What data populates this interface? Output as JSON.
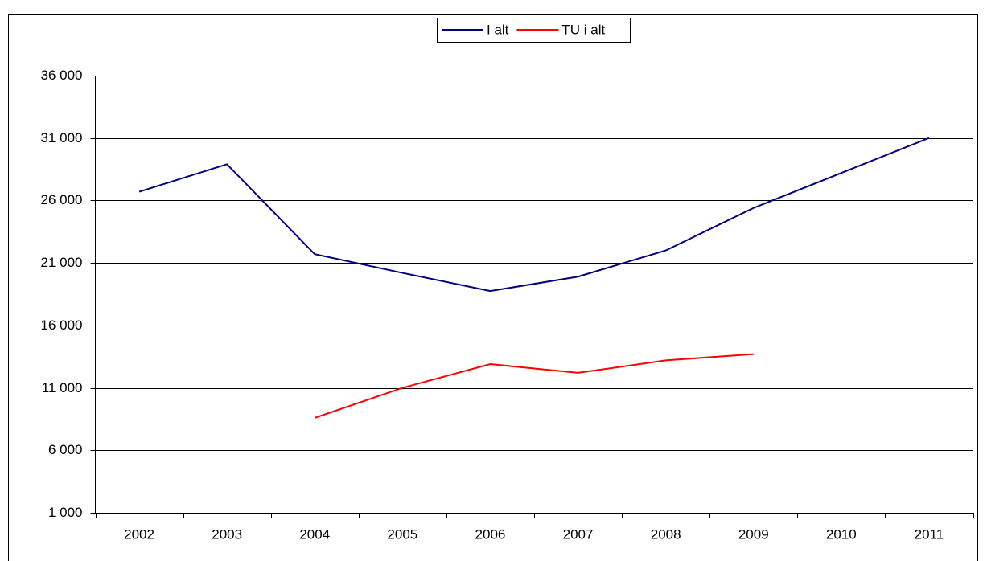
{
  "chart_data": {
    "type": "line",
    "categories": [
      "2002",
      "2003",
      "2004",
      "2005",
      "2006",
      "2007",
      "2008",
      "2009",
      "2010",
      "2011"
    ],
    "series": [
      {
        "name": "I alt",
        "color": "#000080",
        "values": [
          26700,
          28900,
          21700,
          20200,
          18750,
          19900,
          22000,
          25400,
          28200,
          31000
        ]
      },
      {
        "name": "TU i alt",
        "color": "#ff0000",
        "values": [
          null,
          null,
          8600,
          11000,
          12900,
          12200,
          13200,
          13700,
          null,
          null
        ]
      }
    ],
    "ylim": [
      1000,
      36000
    ],
    "yticks": [
      {
        "value": 1000,
        "label": "1 000"
      },
      {
        "value": 6000,
        "label": "6 000"
      },
      {
        "value": 11000,
        "label": "11 000"
      },
      {
        "value": 16000,
        "label": "16 000"
      },
      {
        "value": 21000,
        "label": "21 000"
      },
      {
        "value": 26000,
        "label": "26 000"
      },
      {
        "value": 31000,
        "label": "31 000"
      },
      {
        "value": 36000,
        "label": "36 000"
      }
    ],
    "grid": true,
    "legend": "top"
  }
}
